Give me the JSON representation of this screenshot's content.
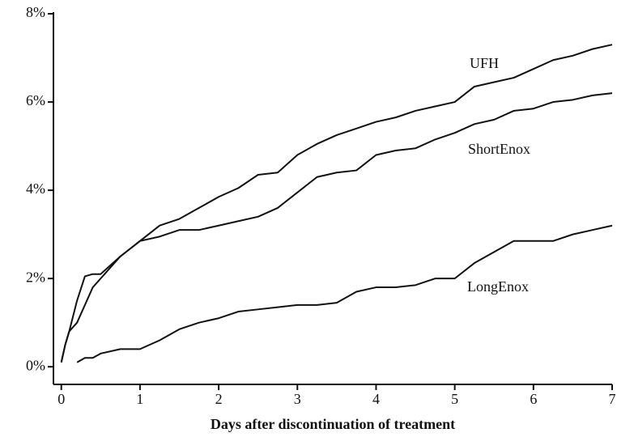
{
  "chart_data": {
    "type": "line",
    "xlabel": "Days after discontinuation of treatment",
    "x": [
      0,
      0.05,
      0.1,
      0.2,
      0.3,
      0.4,
      0.5,
      0.75,
      1,
      1.25,
      1.5,
      1.75,
      2,
      2.25,
      2.5,
      2.75,
      3,
      3.25,
      3.5,
      3.75,
      4,
      4.25,
      4.5,
      4.75,
      5,
      5.25,
      5.5,
      5.75,
      6,
      6.25,
      6.5,
      6.75,
      7
    ],
    "series": [
      {
        "name": "UFH",
        "color": "#111111",
        "values": [
          0.1,
          0.5,
          0.8,
          1.5,
          2.05,
          2.1,
          2.1,
          2.5,
          2.85,
          3.2,
          3.35,
          3.6,
          3.85,
          4.05,
          4.35,
          4.4,
          4.8,
          5.05,
          5.25,
          5.4,
          5.55,
          5.65,
          5.8,
          5.9,
          6.0,
          6.35,
          6.45,
          6.55,
          6.75,
          6.95,
          7.05,
          7.2,
          7.3
        ]
      },
      {
        "name": "ShortEnox",
        "color": "#111111",
        "values": [
          0.1,
          0.5,
          0.8,
          1.0,
          1.4,
          1.8,
          2.0,
          2.5,
          2.85,
          2.95,
          3.1,
          3.1,
          3.2,
          3.3,
          3.4,
          3.6,
          3.95,
          4.3,
          4.4,
          4.45,
          4.8,
          4.9,
          4.95,
          5.15,
          5.3,
          5.5,
          5.6,
          5.8,
          5.85,
          6.0,
          6.05,
          6.15,
          6.2
        ]
      },
      {
        "name": "LongEnox",
        "color": "#111111",
        "values": [
          null,
          null,
          null,
          0.1,
          0.2,
          0.2,
          0.3,
          0.4,
          0.4,
          0.6,
          0.85,
          1.0,
          1.1,
          1.25,
          1.3,
          1.35,
          1.4,
          1.4,
          1.45,
          1.7,
          1.8,
          1.8,
          1.85,
          2.0,
          2.0,
          2.35,
          2.6,
          2.85,
          2.85,
          2.85,
          3.0,
          3.1,
          3.2
        ]
      }
    ],
    "xlim": [
      -0.1,
      7
    ],
    "ylim": [
      -0.4,
      8
    ],
    "xticks": [
      0,
      1,
      2,
      3,
      4,
      5,
      6,
      7
    ],
    "yticks": [
      {
        "value": 0,
        "label": "0%"
      },
      {
        "value": 2,
        "label": "2%"
      },
      {
        "value": 4,
        "label": "4%"
      },
      {
        "value": 6,
        "label": "6%"
      },
      {
        "value": 8,
        "label": "8%"
      }
    ],
    "grid": false
  }
}
